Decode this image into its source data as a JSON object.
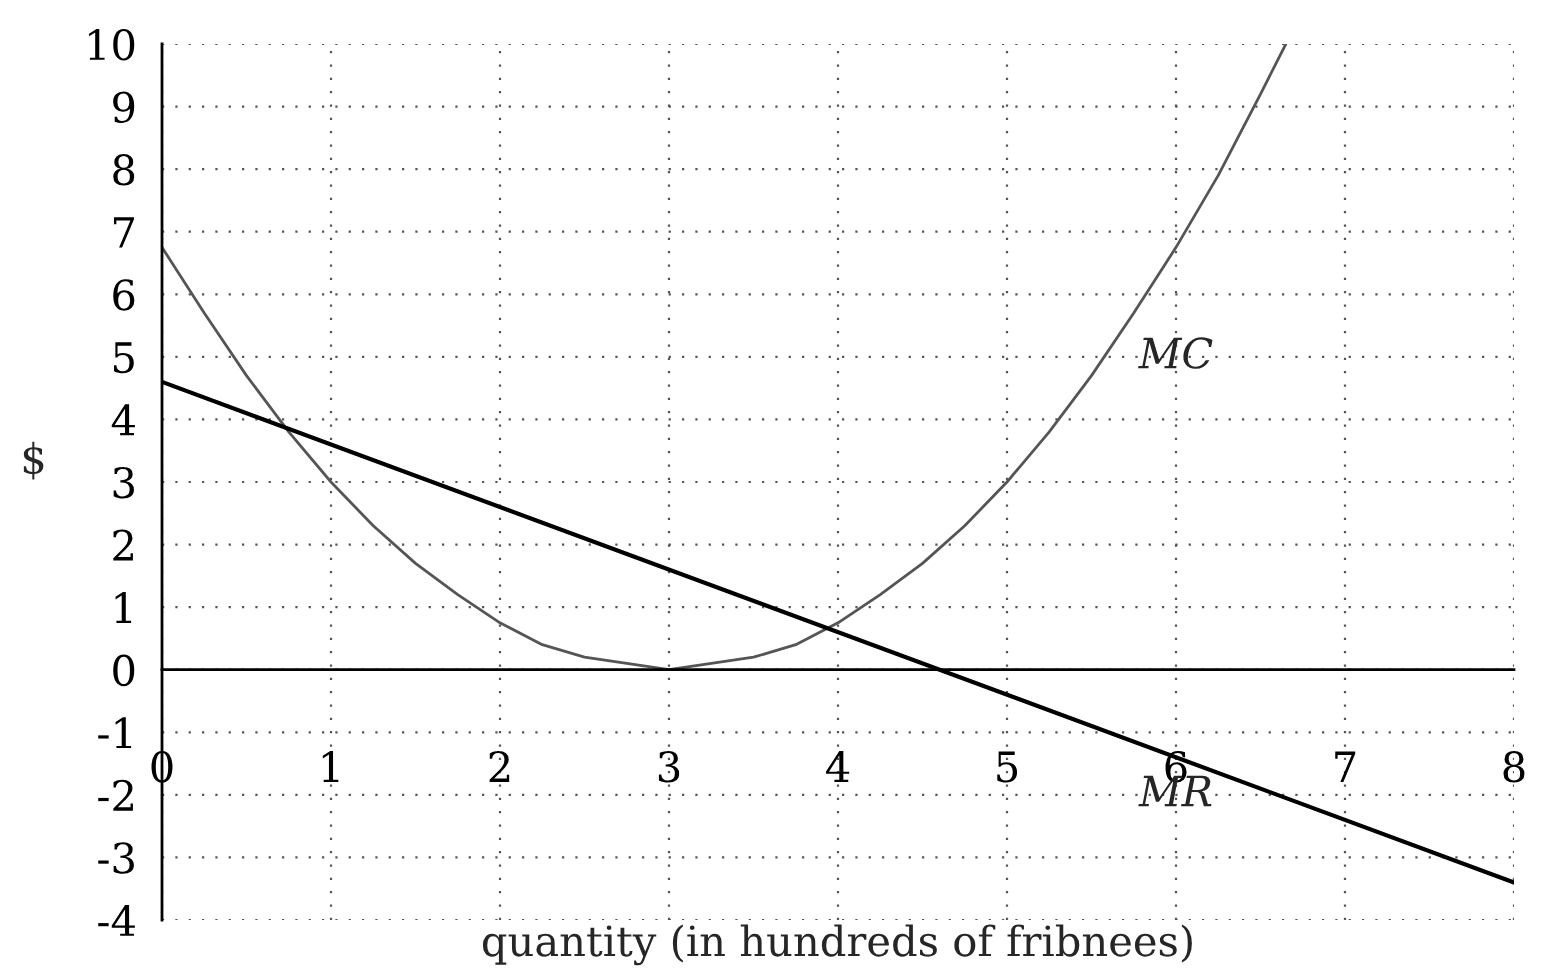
{
  "chart_data": {
    "type": "line",
    "xlabel": "quantity (in hundreds of fribnees)",
    "ylabel": "$",
    "xlim": [
      0,
      8
    ],
    "ylim": [
      -4,
      10
    ],
    "xticks": [
      0,
      1,
      2,
      3,
      4,
      5,
      6,
      7,
      8
    ],
    "yticks": [
      -4,
      -3,
      -2,
      -1,
      0,
      1,
      2,
      3,
      4,
      5,
      6,
      7,
      8,
      9,
      10
    ],
    "grid": true,
    "line_style": "solid",
    "marker": "none",
    "series": [
      {
        "color": "#555555",
        "x": [
          0,
          0.25,
          0.5,
          0.75,
          1,
          1.25,
          1.5,
          1.75,
          2,
          2.25,
          2.5,
          3,
          3.5,
          3.75,
          4,
          4.25,
          4.5,
          4.75,
          5,
          5.25,
          5.5,
          5.75,
          6,
          6.25,
          6.5,
          6.65
        ],
        "values": [
          6.75,
          5.7,
          4.7,
          3.8,
          3,
          2.3,
          1.7,
          1.2,
          0.75,
          0.4,
          0.2,
          0,
          0.2,
          0.4,
          0.75,
          1.2,
          1.7,
          2.3,
          3,
          3.8,
          4.7,
          5.7,
          6.75,
          7.9,
          9.2,
          10
        ]
      },
      {
        "color": "#000000",
        "x": [
          0,
          8
        ],
        "values": [
          4.6,
          -3.4
        ]
      }
    ],
    "annotations": [
      "MC",
      "MR"
    ]
  }
}
